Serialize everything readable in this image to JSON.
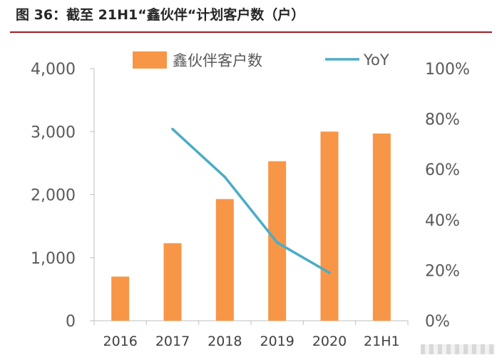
{
  "title": "图 36：截至 21H1“鑫伙伴“计划客户数（户）",
  "colors": {
    "bar": "#f79646",
    "line": "#4bacc6",
    "title_rule": "#a11c20",
    "text": "#595959"
  },
  "chart_data": {
    "type": "bar",
    "categories": [
      "2016",
      "2017",
      "2018",
      "2019",
      "2020",
      "21H1"
    ],
    "series": [
      {
        "name": "鑫伙伴客户数",
        "type": "bar",
        "axis": "left",
        "values": [
          700,
          1230,
          1930,
          2530,
          3000,
          2970
        ]
      },
      {
        "name": "YoY",
        "type": "line",
        "axis": "right",
        "values": [
          null,
          0.76,
          0.57,
          0.31,
          0.19,
          null
        ]
      }
    ],
    "y_left": {
      "ylim": [
        0,
        4000
      ],
      "ticks": [
        "0",
        "1,000",
        "2,000",
        "3,000",
        "4,000"
      ]
    },
    "y_right": {
      "ylim": [
        0,
        1
      ],
      "ticks": [
        "0%",
        "20%",
        "40%",
        "60%",
        "80%",
        "100%"
      ]
    },
    "legend": "top",
    "grid": false
  }
}
